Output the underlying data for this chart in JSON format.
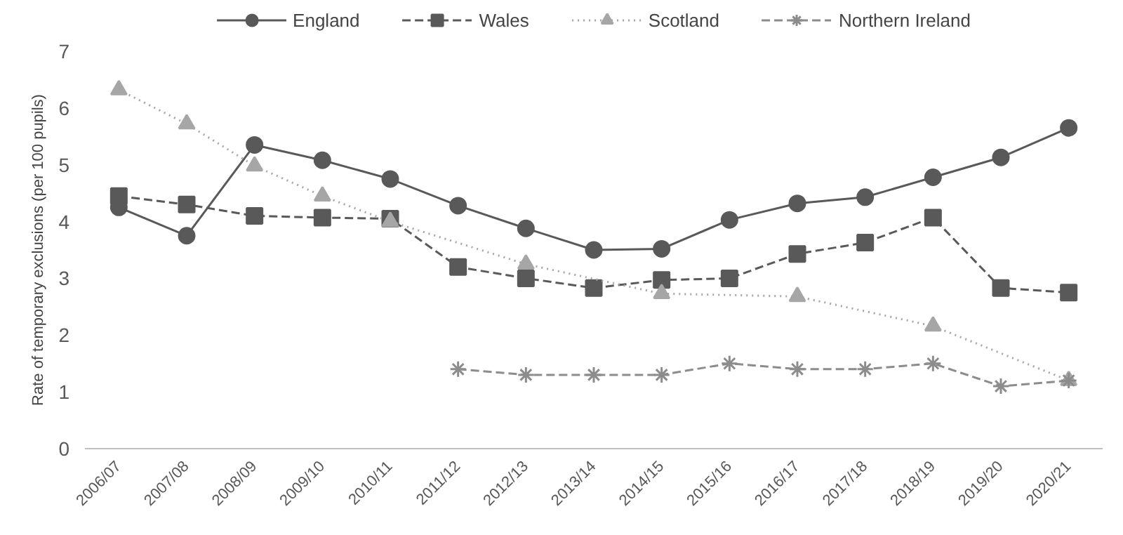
{
  "chart_data": {
    "type": "line",
    "ylabel": "Rate of temporary exclusions (per 100 pupils)",
    "categories": [
      "2006/07",
      "2007/08",
      "2008/09",
      "2009/10",
      "2010/11",
      "2011/12",
      "2012/13",
      "2013/14",
      "2014/15",
      "2015/16",
      "2016/17",
      "2017/18",
      "2018/19",
      "2019/20",
      "2020/21"
    ],
    "series": [
      {
        "name": "England",
        "color": "#595959",
        "marker": "circle",
        "line_style": "solid",
        "values": [
          4.25,
          3.75,
          5.35,
          5.08,
          4.75,
          4.28,
          3.88,
          3.5,
          3.52,
          4.03,
          4.32,
          4.43,
          4.78,
          5.13,
          5.65
        ]
      },
      {
        "name": "Wales",
        "color": "#595959",
        "marker": "square",
        "line_style": "dashed",
        "values": [
          4.45,
          4.3,
          4.1,
          4.07,
          4.05,
          3.2,
          3.0,
          2.83,
          2.97,
          3.0,
          3.43,
          3.63,
          4.07,
          2.83,
          2.75
        ]
      },
      {
        "name": "Scotland",
        "color": "#a6a6a6",
        "marker": "triangle",
        "line_style": "dotted",
        "values": [
          6.32,
          5.72,
          4.98,
          4.45,
          4.0,
          null,
          3.25,
          null,
          2.73,
          null,
          2.68,
          null,
          2.16,
          null,
          1.2
        ]
      },
      {
        "name": "Northern Ireland",
        "color": "#8c8c8c",
        "marker": "cross",
        "line_style": "dashed",
        "values": [
          null,
          null,
          null,
          null,
          null,
          1.4,
          1.3,
          1.3,
          1.3,
          1.5,
          1.4,
          1.4,
          1.5,
          1.1,
          1.2
        ]
      }
    ],
    "ylim": [
      0,
      7
    ],
    "yticks": [
      0,
      1,
      2,
      3,
      4,
      5,
      6,
      7
    ],
    "grid": false,
    "legend": "top"
  }
}
